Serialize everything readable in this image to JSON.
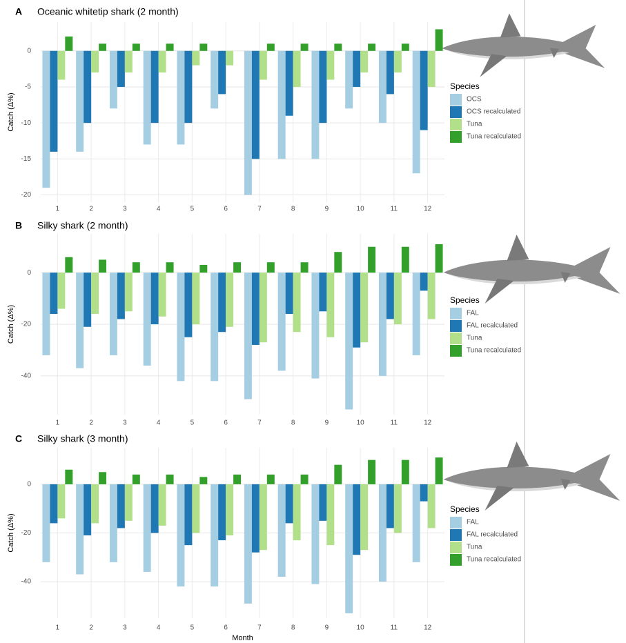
{
  "chart_data": [
    {
      "type": "bar",
      "panel_label": "A",
      "title": "Oceanic whitetip shark (2 month)",
      "y_label": "Catch (Δ%)",
      "legend_title": "Species",
      "categories": [
        "1",
        "2",
        "3",
        "4",
        "5",
        "6",
        "7",
        "8",
        "9",
        "10",
        "11",
        "12"
      ],
      "series": [
        {
          "name": "OCS",
          "color": "#a6cee3",
          "values": [
            -19,
            -14,
            -8,
            -13,
            -13,
            -8,
            -20,
            -15,
            -15,
            -8,
            -10,
            -17
          ]
        },
        {
          "name": "OCS recalculated",
          "color": "#1f78b4",
          "values": [
            -14,
            -10,
            -5,
            -10,
            -10,
            -6,
            -15,
            -9,
            -10,
            -5,
            -6,
            -11
          ]
        },
        {
          "name": "Tuna",
          "color": "#b2df8a",
          "values": [
            -4,
            -3,
            -3,
            -3,
            -2,
            -2,
            -4,
            -5,
            -4,
            -3,
            -3,
            -5
          ]
        },
        {
          "name": "Tuna recalculated",
          "color": "#33a02c",
          "values": [
            2,
            1,
            1,
            1,
            1,
            0,
            1,
            1,
            1,
            1,
            1,
            3
          ]
        }
      ],
      "ylim": [
        -21,
        4
      ],
      "yticks": [
        -20,
        -15,
        -10,
        -5,
        0
      ],
      "grid": true
    },
    {
      "type": "bar",
      "panel_label": "B",
      "title": "Silky shark (2 month)",
      "y_label": "Catch (Δ%)",
      "legend_title": "Species",
      "categories": [
        "1",
        "2",
        "3",
        "4",
        "5",
        "6",
        "7",
        "8",
        "9",
        "10",
        "11",
        "12"
      ],
      "series": [
        {
          "name": "FAL",
          "color": "#a6cee3",
          "values": [
            -32,
            -37,
            -32,
            -36,
            -42,
            -42,
            -49,
            -38,
            -41,
            -53,
            -40,
            -32
          ]
        },
        {
          "name": "FAL recalculated",
          "color": "#1f78b4",
          "values": [
            -16,
            -21,
            -18,
            -20,
            -25,
            -23,
            -28,
            -16,
            -15,
            -29,
            -18,
            -7
          ]
        },
        {
          "name": "Tuna",
          "color": "#b2df8a",
          "values": [
            -14,
            -16,
            -15,
            -17,
            -20,
            -21,
            -27,
            -23,
            -25,
            -27,
            -20,
            -18
          ]
        },
        {
          "name": "Tuna recalculated",
          "color": "#33a02c",
          "values": [
            6,
            5,
            4,
            4,
            3,
            4,
            4,
            4,
            8,
            10,
            10,
            11
          ]
        }
      ],
      "ylim": [
        -55,
        15
      ],
      "yticks": [
        -40,
        -20,
        0
      ],
      "grid": true
    },
    {
      "type": "bar",
      "panel_label": "C",
      "title": "Silky shark (3 month)",
      "y_label": "Catch (Δ%)",
      "x_label": "Month",
      "legend_title": "Species",
      "categories": [
        "1",
        "2",
        "3",
        "4",
        "5",
        "6",
        "7",
        "8",
        "9",
        "10",
        "11",
        "12"
      ],
      "series": [
        {
          "name": "FAL",
          "color": "#a6cee3",
          "values": [
            -32,
            -37,
            -32,
            -36,
            -42,
            -42,
            -49,
            -38,
            -41,
            -53,
            -40,
            -32
          ]
        },
        {
          "name": "FAL recalculated",
          "color": "#1f78b4",
          "values": [
            -16,
            -21,
            -18,
            -20,
            -25,
            -23,
            -28,
            -16,
            -15,
            -29,
            -18,
            -7
          ]
        },
        {
          "name": "Tuna",
          "color": "#b2df8a",
          "values": [
            -14,
            -16,
            -15,
            -17,
            -20,
            -21,
            -27,
            -23,
            -25,
            -27,
            -20,
            -18
          ]
        },
        {
          "name": "Tuna recalculated",
          "color": "#33a02c",
          "values": [
            6,
            5,
            4,
            4,
            3,
            4,
            4,
            4,
            8,
            10,
            10,
            11
          ]
        }
      ],
      "ylim": [
        -55,
        15
      ],
      "yticks": [
        -40,
        -20,
        0
      ],
      "grid": true
    }
  ]
}
